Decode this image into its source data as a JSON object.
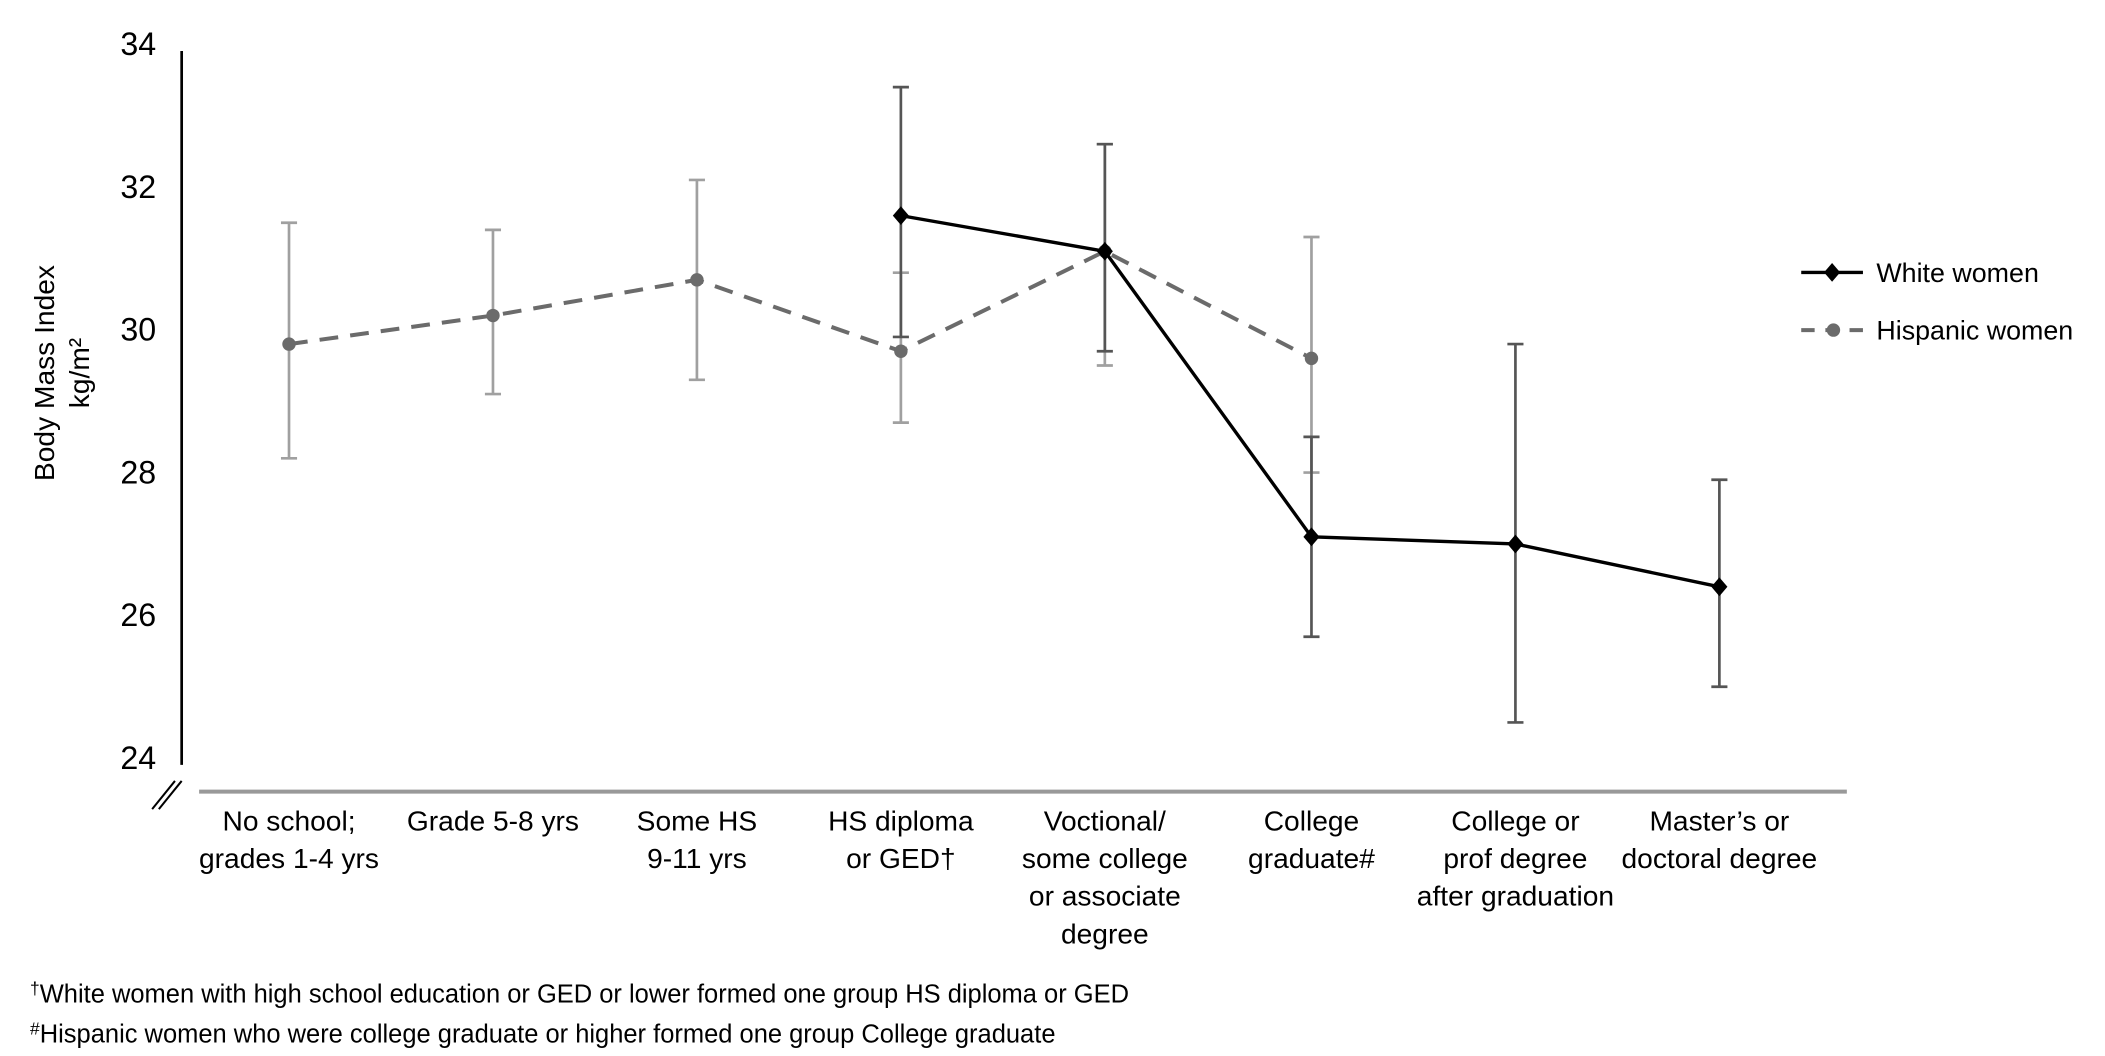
{
  "chart_data": {
    "type": "line",
    "title": "",
    "ylabel": "Body Mass Index",
    "ylabel_unit": "kg/m²",
    "xlabel": "",
    "ylim": [
      24,
      34
    ],
    "yticks": [
      "24",
      "26",
      "28",
      "30",
      "32",
      "34"
    ],
    "grid": false,
    "legend_position": "right",
    "categories": [
      [
        "No school;",
        "grades 1-4 yrs"
      ],
      [
        "Grade 5-8 yrs"
      ],
      [
        "Some HS",
        "9-11 yrs"
      ],
      [
        "HS diploma",
        "or GED†"
      ],
      [
        "Voctional/",
        "some college",
        "or associate",
        "degree"
      ],
      [
        "College",
        "graduate#"
      ],
      [
        "College or",
        "prof degree",
        "after graduation"
      ],
      [
        "Master’s or",
        "doctoral degree"
      ]
    ],
    "series": [
      {
        "name": "White women",
        "color": "#000000",
        "style": "solid",
        "marker": "diamond",
        "values": [
          null,
          null,
          null,
          31.6,
          31.1,
          27.1,
          27.0,
          26.4
        ],
        "ci_low": [
          null,
          null,
          null,
          29.9,
          29.7,
          25.7,
          24.5,
          25.0
        ],
        "ci_high": [
          null,
          null,
          null,
          33.4,
          32.6,
          28.5,
          29.8,
          27.9
        ]
      },
      {
        "name": "Hispanic women",
        "color": "#6b6b6b",
        "style": "dashed",
        "marker": "circle",
        "values": [
          29.8,
          30.2,
          30.7,
          29.7,
          31.1,
          29.6,
          null,
          null
        ],
        "ci_low": [
          28.2,
          29.1,
          29.3,
          28.7,
          29.5,
          28.0,
          null,
          null
        ],
        "ci_high": [
          31.5,
          31.4,
          32.1,
          30.8,
          32.6,
          31.3,
          null,
          null
        ]
      }
    ],
    "footnotes": [
      {
        "mark": "†",
        "text": "White women with high school education or GED or lower formed one group HS diploma or GED"
      },
      {
        "mark": "#",
        "text": "Hispanic women who were college graduate or higher formed one group College graduate"
      }
    ]
  }
}
